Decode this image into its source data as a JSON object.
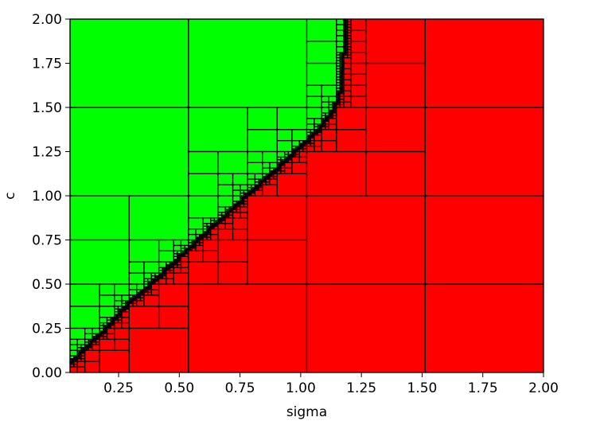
{
  "chart_data": {
    "type": "heatmap",
    "title": "",
    "xlabel": "sigma",
    "ylabel": "c",
    "xlim": [
      0.05,
      2.0
    ],
    "ylim": [
      0.0,
      2.0
    ],
    "xticks": [
      "0.25",
      "0.50",
      "0.75",
      "1.00",
      "1.25",
      "1.50",
      "1.75",
      "2.00"
    ],
    "yticks": [
      "0.00",
      "0.25",
      "0.50",
      "0.75",
      "1.00",
      "1.25",
      "1.50",
      "1.75",
      "2.00"
    ],
    "xtick_values": [
      0.25,
      0.5,
      0.75,
      1.0,
      1.25,
      1.5,
      1.75,
      2.0
    ],
    "ytick_values": [
      0.0,
      0.25,
      0.5,
      0.75,
      1.0,
      1.25,
      1.5,
      1.75,
      2.0
    ],
    "grid": false,
    "legend": "none",
    "colors": {
      "green_region": "#00ff00",
      "red_region": "#ff0000",
      "boundary": "#808080",
      "cell_edge": "#000000"
    },
    "boundary_points": [
      [
        0.05,
        0.05
      ],
      [
        0.1,
        0.12
      ],
      [
        0.2,
        0.25
      ],
      [
        0.3,
        0.4
      ],
      [
        0.4,
        0.52
      ],
      [
        0.5,
        0.65
      ],
      [
        0.6,
        0.78
      ],
      [
        0.7,
        0.9
      ],
      [
        0.8,
        1.03
      ],
      [
        0.9,
        1.15
      ],
      [
        1.0,
        1.28
      ],
      [
        1.08,
        1.38
      ],
      [
        1.13,
        1.48
      ],
      [
        1.16,
        1.55
      ],
      [
        1.17,
        1.7
      ],
      [
        1.18,
        1.85
      ],
      [
        1.18,
        2.0
      ]
    ]
  }
}
